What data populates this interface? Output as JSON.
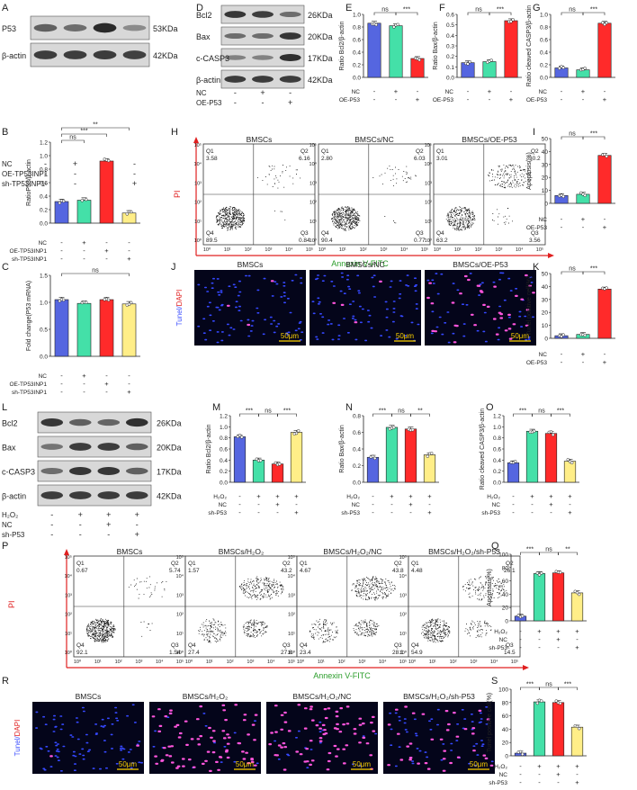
{
  "panel_letters": [
    "A",
    "B",
    "C",
    "D",
    "E",
    "F",
    "G",
    "H",
    "I",
    "J",
    "K",
    "L",
    "M",
    "N",
    "O",
    "P",
    "Q",
    "R",
    "S"
  ],
  "blots": {
    "A": {
      "rows": [
        "P53",
        "β-actin"
      ],
      "sizes": [
        "53KDa",
        "42KDa"
      ],
      "lanes": 4,
      "bands": [
        [
          0.55,
          0.45,
          0.95,
          0.22
        ],
        [
          0.8,
          0.8,
          0.82,
          0.78
        ]
      ],
      "conditions": [
        {
          "name": "NC",
          "signs": [
            "-",
            "+",
            "-",
            "-"
          ]
        },
        {
          "name": "OE-TP53INP1",
          "signs": [
            "-",
            "-",
            "+",
            "-"
          ]
        },
        {
          "name": "sh-TP53INP1",
          "signs": [
            "-",
            "-",
            "-",
            "+"
          ]
        }
      ]
    },
    "D": {
      "rows": [
        "Bcl2",
        "Bax",
        "c-CASP3",
        "β-actin"
      ],
      "sizes": [
        "26KDa",
        "20KDa",
        "17KDa",
        "42KDa"
      ],
      "lanes": 3,
      "bands": [
        [
          0.85,
          0.8,
          0.45
        ],
        [
          0.45,
          0.45,
          0.85
        ],
        [
          0.3,
          0.3,
          0.9
        ],
        [
          0.82,
          0.82,
          0.82
        ]
      ],
      "conditions": [
        {
          "name": "NC",
          "signs": [
            "-",
            "+",
            "-"
          ]
        },
        {
          "name": "OE-P53",
          "signs": [
            "-",
            "-",
            "+"
          ]
        }
      ]
    },
    "L": {
      "rows": [
        "Bcl2",
        "Bax",
        "c-CASP3",
        "β-actin"
      ],
      "sizes": [
        "26KDa",
        "20KDa",
        "17KDa",
        "42KDa"
      ],
      "lanes": 4,
      "bands": [
        [
          0.85,
          0.55,
          0.5,
          0.9
        ],
        [
          0.4,
          0.8,
          0.8,
          0.55
        ],
        [
          0.45,
          0.85,
          0.85,
          0.55
        ],
        [
          0.82,
          0.82,
          0.82,
          0.82
        ]
      ],
      "conditions": [
        {
          "name": "H₂O₂",
          "signs": [
            "-",
            "+",
            "+",
            "+"
          ]
        },
        {
          "name": "NC",
          "signs": [
            "-",
            "-",
            "+",
            "-"
          ]
        },
        {
          "name": "sh-P53",
          "signs": [
            "-",
            "-",
            "-",
            "+"
          ]
        }
      ]
    }
  },
  "flow_axes": {
    "y": "PI",
    "x": "Annexin V-FITC",
    "ticks": [
      "10⁰",
      "10¹",
      "10²",
      "10³",
      "10⁴",
      "10⁵"
    ]
  },
  "flow": {
    "H": [
      {
        "title": "BMSCs",
        "q1": "3.58",
        "q2": "6.16",
        "q3": "0.84",
        "q4": "89.5"
      },
      {
        "title": "BMSCs/NC",
        "q1": "2.80",
        "q2": "6.03",
        "q3": "0.77",
        "q4": "90.4"
      },
      {
        "title": "BMSCs/OE-P53",
        "q1": "3.01",
        "q2": "30.2",
        "q3": "3.56",
        "q4": "63.2"
      }
    ],
    "P": [
      {
        "title": "BMSCs",
        "q1": "0.67",
        "q2": "5.74",
        "q3": "1.54",
        "q4": "92.1"
      },
      {
        "title": "BMSCs/H₂O₂",
        "q1": "1.57",
        "q2": "43.2",
        "q3": "27.8",
        "q4": "27.4"
      },
      {
        "title": "BMSCs/H₂O₂/NC",
        "q1": "4.67",
        "q2": "43.8",
        "q3": "28.1",
        "q4": "23.4"
      },
      {
        "title": "BMSCs/H₂O₂/sh-P53",
        "q1": "4.48",
        "q2": "26.1",
        "q3": "14.5",
        "q4": "54.9"
      }
    ]
  },
  "tunel": {
    "axis_label": "Tunel/DAPI",
    "scale_bar": "50μm",
    "J": [
      {
        "title": "BMSCs",
        "positive": 0.02
      },
      {
        "title": "BMSCs/NC",
        "positive": 0.03
      },
      {
        "title": "BMSCs/OE-P53",
        "positive": 0.38
      }
    ],
    "R": [
      {
        "title": "BMSCs",
        "positive": 0.05
      },
      {
        "title": "BMSCs/H₂O₂",
        "positive": 0.82
      },
      {
        "title": "BMSCs/H₂O₂/NC",
        "positive": 0.8
      },
      {
        "title": "BMSCs/H₂O₂/sh-P53",
        "positive": 0.43
      }
    ]
  },
  "chart_data": [
    {
      "panel": "B",
      "type": "bar",
      "ylabel": "RatioP53/β-actin",
      "ylim": [
        0,
        1.2
      ],
      "yticks": [
        "0.0",
        "0.2",
        "0.4",
        "0.6",
        "0.8",
        "1.0",
        "1.2"
      ],
      "values": [
        0.32,
        0.34,
        0.92,
        0.15
      ],
      "colors": [
        "#5566e0",
        "#44e0a8",
        "#ff2a2a",
        "#ffee88"
      ],
      "conditions": [
        {
          "name": "NC",
          "signs": [
            "-",
            "+",
            "-",
            "-"
          ]
        },
        {
          "name": "OE-TP53INP1",
          "signs": [
            "-",
            "-",
            "+",
            "-"
          ]
        },
        {
          "name": "sh-TP53INP1",
          "signs": [
            "-",
            "-",
            "-",
            "+"
          ]
        }
      ],
      "sig": [
        {
          "from": 0,
          "to": 1,
          "label": "ns",
          "level": 1
        },
        {
          "from": 0,
          "to": 2,
          "label": "***",
          "level": 2
        },
        {
          "from": 0,
          "to": 3,
          "label": "**",
          "level": 3
        }
      ]
    },
    {
      "panel": "C",
      "type": "bar",
      "ylabel": "Fold change(P53 mRNA)",
      "ylim": [
        0,
        1.5
      ],
      "yticks": [
        "0.0",
        "0.5",
        "1.0",
        "1.5"
      ],
      "values": [
        1.05,
        0.98,
        1.05,
        0.97
      ],
      "colors": [
        "#5566e0",
        "#44e0a8",
        "#ff2a2a",
        "#ffee88"
      ],
      "conditions": [
        {
          "name": "NC",
          "signs": [
            "-",
            "+",
            "-",
            "-"
          ]
        },
        {
          "name": "OE-TP53INP1",
          "signs": [
            "-",
            "-",
            "+",
            "-"
          ]
        },
        {
          "name": "sh-TP53INP1",
          "signs": [
            "-",
            "-",
            "-",
            "+"
          ]
        }
      ],
      "sig": [
        {
          "from": 0,
          "to": 3,
          "label": "ns",
          "level": 1
        }
      ]
    },
    {
      "panel": "E",
      "type": "bar",
      "ylabel": "Ratio Bcl2/β-actin",
      "ylim": [
        0,
        1.0
      ],
      "yticks": [
        "0.0",
        "0.2",
        "0.4",
        "0.6",
        "0.8",
        "1.0"
      ],
      "values": [
        0.86,
        0.82,
        0.3
      ],
      "colors": [
        "#5566e0",
        "#44e0a8",
        "#ff2a2a"
      ],
      "conditions": [
        {
          "name": "NC",
          "signs": [
            "-",
            "+",
            "-"
          ]
        },
        {
          "name": "OE-P53",
          "signs": [
            "-",
            "-",
            "+"
          ]
        }
      ],
      "sig": [
        {
          "from": 0,
          "to": 1,
          "label": "ns",
          "level": 1
        },
        {
          "from": 1,
          "to": 2,
          "label": "***",
          "level": 1
        }
      ]
    },
    {
      "panel": "F",
      "type": "bar",
      "ylabel": "Ratio Bax/β-actin",
      "ylim": [
        0,
        0.6
      ],
      "yticks": [
        "0.0",
        "0.1",
        "0.2",
        "0.3",
        "0.4",
        "0.5",
        "0.6"
      ],
      "values": [
        0.14,
        0.15,
        0.54
      ],
      "colors": [
        "#5566e0",
        "#44e0a8",
        "#ff2a2a"
      ],
      "conditions": [
        {
          "name": "NC",
          "signs": [
            "-",
            "+",
            "-"
          ]
        },
        {
          "name": "OE-P53",
          "signs": [
            "-",
            "-",
            "+"
          ]
        }
      ],
      "sig": [
        {
          "from": 0,
          "to": 1,
          "label": "ns",
          "level": 1
        },
        {
          "from": 1,
          "to": 2,
          "label": "***",
          "level": 1
        }
      ]
    },
    {
      "panel": "G",
      "type": "bar",
      "ylabel": "Ratio cleaved CASP3/β-actin",
      "ylim": [
        0,
        1.0
      ],
      "yticks": [
        "0.0",
        "0.2",
        "0.4",
        "0.6",
        "0.8",
        "1.0"
      ],
      "values": [
        0.15,
        0.12,
        0.86
      ],
      "colors": [
        "#5566e0",
        "#44e0a8",
        "#ff2a2a"
      ],
      "conditions": [
        {
          "name": "NC",
          "signs": [
            "-",
            "+",
            "-"
          ]
        },
        {
          "name": "OE-P53",
          "signs": [
            "-",
            "-",
            "+"
          ]
        }
      ],
      "sig": [
        {
          "from": 0,
          "to": 1,
          "label": "ns",
          "level": 1
        },
        {
          "from": 1,
          "to": 2,
          "label": "***",
          "level": 1
        }
      ]
    },
    {
      "panel": "I",
      "type": "bar",
      "ylabel": "Apoptosis(%)",
      "ylim": [
        0,
        50
      ],
      "yticks": [
        "0",
        "10",
        "20",
        "30",
        "40",
        "50"
      ],
      "values": [
        6,
        7,
        37
      ],
      "colors": [
        "#5566e0",
        "#44e0a8",
        "#ff2a2a"
      ],
      "conditions": [
        {
          "name": "NC",
          "signs": [
            "-",
            "+",
            "-"
          ]
        },
        {
          "name": "OE-P53",
          "signs": [
            "-",
            "-",
            "+"
          ]
        }
      ],
      "sig": [
        {
          "from": 0,
          "to": 1,
          "label": "ns",
          "level": 1
        },
        {
          "from": 1,
          "to": 2,
          "label": "***",
          "level": 1
        }
      ]
    },
    {
      "panel": "K",
      "type": "bar",
      "ylabel": "Tunel positive cell(%)",
      "ylim": [
        0,
        50
      ],
      "yticks": [
        "0",
        "10",
        "20",
        "30",
        "40",
        "50"
      ],
      "values": [
        2,
        3,
        38
      ],
      "colors": [
        "#5566e0",
        "#44e0a8",
        "#ff2a2a"
      ],
      "conditions": [
        {
          "name": "NC",
          "signs": [
            "-",
            "+",
            "-"
          ]
        },
        {
          "name": "OE-P53",
          "signs": [
            "-",
            "-",
            "+"
          ]
        }
      ],
      "sig": [
        {
          "from": 0,
          "to": 1,
          "label": "ns",
          "level": 1
        },
        {
          "from": 1,
          "to": 2,
          "label": "***",
          "level": 1
        }
      ]
    },
    {
      "panel": "M",
      "type": "bar",
      "ylabel": "Ratio Bcl2/β-actin",
      "ylim": [
        0,
        1.2
      ],
      "yticks": [
        "0.0",
        "0.2",
        "0.4",
        "0.6",
        "0.8",
        "1.0",
        "1.2"
      ],
      "values": [
        0.82,
        0.4,
        0.33,
        0.9
      ],
      "colors": [
        "#5566e0",
        "#44e0a8",
        "#ff2a2a",
        "#ffee88"
      ],
      "conditions": [
        {
          "name": "H₂O₂",
          "signs": [
            "-",
            "+",
            "+",
            "+"
          ]
        },
        {
          "name": "NC",
          "signs": [
            "-",
            "-",
            "+",
            "-"
          ]
        },
        {
          "name": "sh-P53",
          "signs": [
            "-",
            "-",
            "-",
            "+"
          ]
        }
      ],
      "sig": [
        {
          "from": 0,
          "to": 1,
          "label": "***",
          "level": 1
        },
        {
          "from": 1,
          "to": 2,
          "label": "ns",
          "level": 1
        },
        {
          "from": 2,
          "to": 3,
          "label": "***",
          "level": 1
        }
      ]
    },
    {
      "panel": "N",
      "type": "bar",
      "ylabel": "Ratio Bax/β-actin",
      "ylim": [
        0,
        0.8
      ],
      "yticks": [
        "0.0",
        "0.2",
        "0.4",
        "0.6",
        "0.8"
      ],
      "values": [
        0.3,
        0.66,
        0.64,
        0.33
      ],
      "colors": [
        "#5566e0",
        "#44e0a8",
        "#ff2a2a",
        "#ffee88"
      ],
      "conditions": [
        {
          "name": "H₂O₂",
          "signs": [
            "-",
            "+",
            "+",
            "+"
          ]
        },
        {
          "name": "NC",
          "signs": [
            "-",
            "-",
            "+",
            "-"
          ]
        },
        {
          "name": "sh-P53",
          "signs": [
            "-",
            "-",
            "-",
            "+"
          ]
        }
      ],
      "sig": [
        {
          "from": 0,
          "to": 1,
          "label": "***",
          "level": 1
        },
        {
          "from": 1,
          "to": 2,
          "label": "ns",
          "level": 1
        },
        {
          "from": 2,
          "to": 3,
          "label": "**",
          "level": 1
        }
      ]
    },
    {
      "panel": "O",
      "type": "bar",
      "ylabel": "Ratio cleaved CASP3/β-actin",
      "ylim": [
        0,
        1.2
      ],
      "yticks": [
        "0.0",
        "0.2",
        "0.4",
        "0.6",
        "0.8",
        "1.0",
        "1.2"
      ],
      "values": [
        0.35,
        0.92,
        0.88,
        0.38
      ],
      "colors": [
        "#5566e0",
        "#44e0a8",
        "#ff2a2a",
        "#ffee88"
      ],
      "conditions": [
        {
          "name": "H₂O₂",
          "signs": [
            "-",
            "+",
            "+",
            "+"
          ]
        },
        {
          "name": "NC",
          "signs": [
            "-",
            "-",
            "+",
            "-"
          ]
        },
        {
          "name": "sh-P53",
          "signs": [
            "-",
            "-",
            "-",
            "+"
          ]
        }
      ],
      "sig": [
        {
          "from": 0,
          "to": 1,
          "label": "***",
          "level": 1
        },
        {
          "from": 1,
          "to": 2,
          "label": "ns",
          "level": 1
        },
        {
          "from": 2,
          "to": 3,
          "label": "***",
          "level": 1
        }
      ]
    },
    {
      "panel": "Q",
      "type": "bar",
      "ylabel": "Apoptosis(%)",
      "ylim": [
        0,
        100
      ],
      "yticks": [
        "0",
        "20",
        "40",
        "60",
        "80",
        "100"
      ],
      "values": [
        7,
        71,
        72,
        42
      ],
      "colors": [
        "#5566e0",
        "#44e0a8",
        "#ff2a2a",
        "#ffee88"
      ],
      "conditions": [
        {
          "name": "H₂O₂",
          "signs": [
            "-",
            "+",
            "+",
            "+"
          ]
        },
        {
          "name": "NC",
          "signs": [
            "-",
            "-",
            "+",
            "-"
          ]
        },
        {
          "name": "sh-P53",
          "signs": [
            "-",
            "-",
            "-",
            "+"
          ]
        }
      ],
      "sig": [
        {
          "from": 0,
          "to": 1,
          "label": "***",
          "level": 1
        },
        {
          "from": 1,
          "to": 2,
          "label": "ns",
          "level": 1
        },
        {
          "from": 2,
          "to": 3,
          "label": "**",
          "level": 1
        }
      ]
    },
    {
      "panel": "S",
      "type": "bar",
      "ylabel": "Tunel positive cell(%)",
      "ylim": [
        0,
        100
      ],
      "yticks": [
        "0",
        "20",
        "40",
        "60",
        "80",
        "100"
      ],
      "values": [
        4,
        81,
        80,
        43
      ],
      "colors": [
        "#5566e0",
        "#44e0a8",
        "#ff2a2a",
        "#ffee88"
      ],
      "conditions": [
        {
          "name": "H₂O₂",
          "signs": [
            "-",
            "+",
            "+",
            "+"
          ]
        },
        {
          "name": "NC",
          "signs": [
            "-",
            "-",
            "+",
            "-"
          ]
        },
        {
          "name": "sh-P53",
          "signs": [
            "-",
            "-",
            "-",
            "+"
          ]
        }
      ],
      "sig": [
        {
          "from": 0,
          "to": 1,
          "label": "***",
          "level": 1
        },
        {
          "from": 1,
          "to": 2,
          "label": "ns",
          "level": 1
        },
        {
          "from": 2,
          "to": 3,
          "label": "***",
          "level": 1
        }
      ]
    }
  ]
}
